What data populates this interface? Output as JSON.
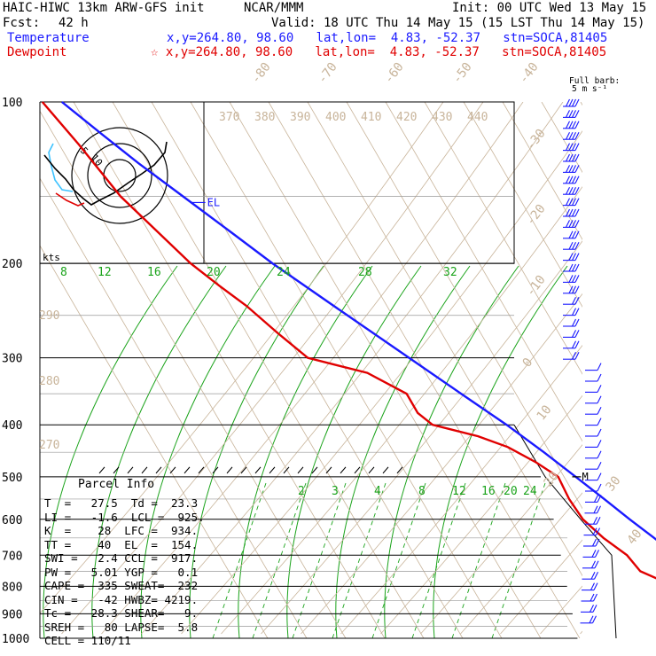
{
  "header": {
    "model": "HAIC-HIWC 13km ARW-GFS init",
    "org": "NCAR/MMM",
    "init": "Init: 00 UTC Wed 13 May 15",
    "fcst_label": "Fcst:",
    "fcst_value": "42 h",
    "valid": "Valid: 18 UTC Thu 14 May 15 (15 LST Thu 14 May 15)",
    "temperature_label": "Temperature",
    "dewpoint_label": "Dewpoint",
    "temp_loc": "x,y=264.80, 98.60   lat,lon=  4.83, -52.37   stn=SOCA,81405",
    "dew_loc": "☆ x,y=264.80, 98.60   lat,lon=  4.83, -52.37   stn=SOCA,81405"
  },
  "barb_legend": {
    "line1": "Full barb:",
    "line2": "5 m s⁻¹"
  },
  "hodograph": {
    "units": "kts",
    "ring_labels": [
      "5",
      "10"
    ]
  },
  "chart_data": {
    "type": "line",
    "title": "",
    "xlabel": "",
    "ylabel": "",
    "ylim": [
      1000,
      100
    ],
    "pressure_labels": [
      "100",
      "200",
      "300",
      "400",
      "500",
      "600",
      "700",
      "800",
      "900",
      "1000"
    ],
    "isotherm_labels": [
      "-80",
      "-70",
      "-60",
      "-50",
      "-40",
      "-30",
      "-20",
      "-10",
      "0",
      "10",
      "20",
      "30",
      "40"
    ],
    "theta_labels": [
      "370",
      "380",
      "390",
      "400",
      "410",
      "420",
      "430",
      "440"
    ],
    "theta_side_labels": [
      "290",
      "280",
      "270"
    ],
    "mixing_ratio_upper": [
      "8",
      "12",
      "16",
      "20",
      "24",
      "28",
      "32"
    ],
    "mixing_ratio_lower": [
      "2",
      "3",
      "4",
      "8",
      "12",
      "16",
      "20",
      "24"
    ],
    "series": [
      {
        "name": "Temperature",
        "color": "#1a1aff",
        "p": [
          1000,
          975,
          950,
          925,
          900,
          850,
          800,
          750,
          700,
          650,
          600,
          550,
          500,
          450,
          400,
          350,
          300,
          250,
          200,
          175,
          150,
          130,
          115,
          100
        ],
        "t": [
          27.5,
          24.5,
          22.5,
          21.0,
          19.2,
          16.0,
          12.8,
          10.0,
          7.0,
          4.0,
          0.5,
          -3.0,
          -7.0,
          -11.5,
          -17.0,
          -24.0,
          -32.0,
          -41.5,
          -53.0,
          -59.0,
          -66.0,
          -72.5,
          -77.5,
          -83.0
        ]
      },
      {
        "name": "Dewpoint",
        "color": "#e00000",
        "p": [
          1000,
          975,
          950,
          925,
          900,
          850,
          800,
          750,
          700,
          650,
          600,
          550,
          500,
          470,
          440,
          420,
          400,
          380,
          350,
          320,
          300,
          270,
          240,
          220,
          200,
          150,
          120,
          100
        ],
        "t": [
          23.3,
          21.5,
          19.5,
          16.5,
          13.5,
          8.0,
          2.0,
          -4.5,
          -5.5,
          -9.0,
          -11.5,
          -12.0,
          -11.5,
          -15.0,
          -20.0,
          -26.0,
          -36.0,
          -38.0,
          -38.0,
          -45.0,
          -58.0,
          -62.0,
          -66.0,
          -70.0,
          -74.0,
          -82.0,
          -85.0,
          -88.0
        ]
      }
    ],
    "markers": [
      {
        "label": "EL",
        "p": 154
      },
      {
        "label": "M",
        "p": 500
      },
      {
        "label": "CCL",
        "p": 917
      },
      {
        "label": "LCL",
        "p": 925
      },
      {
        "label": "LFC",
        "p": 934
      }
    ],
    "wind_barbs": {
      "count": 48,
      "flag_stroke_count_mode": "variable"
    },
    "grid": true
  },
  "parcel_info": {
    "title": "Parcel Info",
    "rows": [
      "T  =   27.5  Td =  23.3",
      "LI =   -1.6  LCL =  925.",
      "K  =    28  LFC =  934.",
      "TT =    40  EL  =  154.",
      "SWI =   2.4 CCL =  917.",
      "PW =   5.01 YGP =   0.1",
      "CAPE =  335 SWEAT=  232",
      "CIN =   -42 HWBZ= 4219.",
      "Tc =   28.3 SHEAR=   9.",
      "SREH =   80 LAPSE=  5.8",
      "CELL = 110/11"
    ]
  }
}
